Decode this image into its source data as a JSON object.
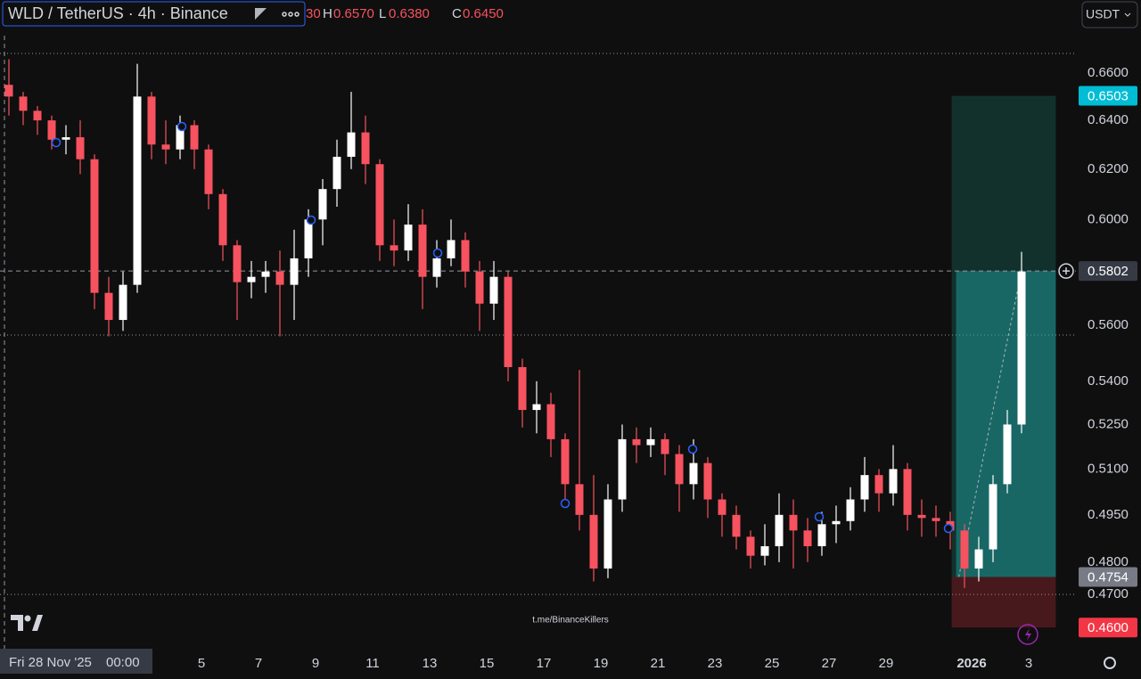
{
  "header": {
    "symbol": "WLD / TetherUS · 4h · Binance",
    "ohlc": {
      "open_partial": "30",
      "high_label": "H",
      "high": "0.6570",
      "low_label": "L",
      "low": "0.6380",
      "close_label": "C",
      "close": "0.6450"
    },
    "currency": "USDT"
  },
  "chart_data": {
    "type": "candlestick",
    "log": true,
    "up_color": "#ffffff",
    "down_color": "#f7525f",
    "open": [
      0.655,
      0.65,
      0.644,
      0.64,
      0.632,
      0.633,
      0.624,
      0.572,
      0.562,
      0.575,
      0.65,
      0.63,
      0.628,
      0.638,
      0.628,
      0.61,
      0.59,
      0.576,
      0.578,
      0.58,
      0.575,
      0.585,
      0.6,
      0.612,
      0.625,
      0.635,
      0.622,
      0.59,
      0.588,
      0.598,
      0.578,
      0.585,
      0.592,
      0.58,
      0.568,
      0.578,
      0.545,
      0.53,
      0.532,
      0.52,
      0.505,
      0.495,
      0.478,
      0.5,
      0.52,
      0.518,
      0.52,
      0.515,
      0.505,
      0.512,
      0.5,
      0.495,
      0.488,
      0.482,
      0.485,
      0.495,
      0.49,
      0.485,
      0.492,
      0.493,
      0.5,
      0.508,
      0.502,
      0.51,
      0.495,
      0.494,
      0.493,
      0.49,
      0.478,
      0.484,
      0.505,
      0.525
    ],
    "high": [
      0.666,
      0.652,
      0.646,
      0.642,
      0.638,
      0.64,
      0.626,
      0.578,
      0.58,
      0.664,
      0.652,
      0.64,
      0.642,
      0.64,
      0.63,
      0.612,
      0.592,
      0.584,
      0.584,
      0.588,
      0.596,
      0.604,
      0.616,
      0.632,
      0.652,
      0.642,
      0.624,
      0.6,
      0.606,
      0.604,
      0.592,
      0.6,
      0.595,
      0.584,
      0.584,
      0.58,
      0.548,
      0.54,
      0.536,
      0.522,
      0.544,
      0.508,
      0.505,
      0.525,
      0.524,
      0.524,
      0.522,
      0.518,
      0.52,
      0.514,
      0.502,
      0.498,
      0.49,
      0.492,
      0.502,
      0.5,
      0.494,
      0.496,
      0.498,
      0.504,
      0.514,
      0.51,
      0.518,
      0.512,
      0.5,
      0.498,
      0.496,
      0.492,
      0.488,
      0.508,
      0.53,
      0.5875
    ],
    "low": [
      0.642,
      0.638,
      0.634,
      0.628,
      0.626,
      0.618,
      0.566,
      0.556,
      0.558,
      0.572,
      0.624,
      0.622,
      0.624,
      0.62,
      0.604,
      0.584,
      0.562,
      0.57,
      0.572,
      0.556,
      0.562,
      0.578,
      0.59,
      0.605,
      0.62,
      0.614,
      0.584,
      0.582,
      0.584,
      0.566,
      0.574,
      0.582,
      0.574,
      0.558,
      0.562,
      0.54,
      0.524,
      0.522,
      0.514,
      0.498,
      0.49,
      0.474,
      0.475,
      0.496,
      0.512,
      0.514,
      0.508,
      0.496,
      0.5,
      0.494,
      0.488,
      0.484,
      0.478,
      0.479,
      0.48,
      0.478,
      0.48,
      0.482,
      0.486,
      0.49,
      0.496,
      0.496,
      0.498,
      0.49,
      0.488,
      0.488,
      0.484,
      0.472,
      0.474,
      0.48,
      0.502,
      0.522
    ],
    "close": [
      0.65,
      0.644,
      0.64,
      0.632,
      0.633,
      0.624,
      0.572,
      0.562,
      0.575,
      0.65,
      0.63,
      0.628,
      0.638,
      0.628,
      0.61,
      0.59,
      0.576,
      0.578,
      0.58,
      0.575,
      0.585,
      0.6,
      0.612,
      0.625,
      0.635,
      0.622,
      0.59,
      0.588,
      0.598,
      0.578,
      0.585,
      0.592,
      0.58,
      0.568,
      0.578,
      0.545,
      0.53,
      0.532,
      0.52,
      0.505,
      0.495,
      0.478,
      0.5,
      0.52,
      0.518,
      0.52,
      0.515,
      0.505,
      0.512,
      0.5,
      0.495,
      0.488,
      0.482,
      0.485,
      0.495,
      0.49,
      0.485,
      0.492,
      0.493,
      0.5,
      0.508,
      0.502,
      0.51,
      0.495,
      0.494,
      0.493,
      0.49,
      0.478,
      0.484,
      0.505,
      0.525,
      0.58
    ],
    "xlim": [
      0,
      75
    ],
    "xticks": [
      {
        "value": 14,
        "label": "5"
      },
      {
        "value": 18,
        "label": "7"
      },
      {
        "value": 22,
        "label": "9"
      },
      {
        "value": 26,
        "label": "11"
      },
      {
        "value": 30,
        "label": "13"
      },
      {
        "value": 34,
        "label": "15"
      },
      {
        "value": 38,
        "label": "17"
      },
      {
        "value": 42,
        "label": "19"
      },
      {
        "value": 46,
        "label": "21"
      },
      {
        "value": 50,
        "label": "23"
      },
      {
        "value": 54,
        "label": "25"
      },
      {
        "value": 58,
        "label": "27"
      },
      {
        "value": 62,
        "label": "29"
      },
      {
        "value": 68,
        "label": "2026"
      },
      {
        "value": 72,
        "label": "3"
      }
    ],
    "ylim": [
      0.4558,
      0.6763
    ],
    "yticks": [
      {
        "value": 0.66,
        "label": "0.6600"
      },
      {
        "value": 0.64,
        "label": "0.6400"
      },
      {
        "value": 0.62,
        "label": "0.6200"
      },
      {
        "value": 0.6,
        "label": "0.6000"
      },
      {
        "value": 0.56,
        "label": "0.5600"
      },
      {
        "value": 0.54,
        "label": "0.5400"
      },
      {
        "value": 0.525,
        "label": "0.5250"
      },
      {
        "value": 0.51,
        "label": "0.5100"
      },
      {
        "value": 0.495,
        "label": "0.4950"
      },
      {
        "value": 0.48,
        "label": "0.4800"
      },
      {
        "value": 0.47,
        "label": "0.4700"
      }
    ],
    "hlines": [
      0.6685,
      0.5565,
      0.47
    ],
    "crosshair": {
      "date": "Fri 28 Nov '25",
      "time": "00:00",
      "price": 0.5802
    },
    "position": {
      "start": 66.6,
      "end": 73.9,
      "target": 0.6503,
      "entry": 0.4754,
      "stop": {
        "value": 0.46,
        "label": "0.4600"
      },
      "current": 0.5802
    },
    "watermark": "t.me/BinanceKillers"
  }
}
